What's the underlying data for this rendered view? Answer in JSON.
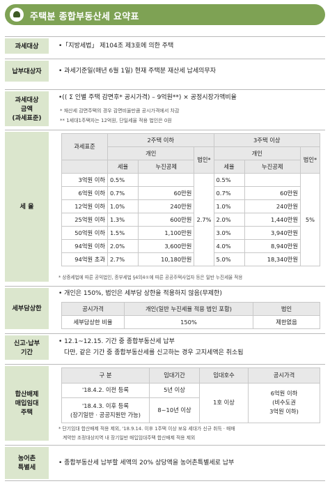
{
  "title": "주택분 종합부동산세 요약표",
  "rows": {
    "target": {
      "label": "과세대상",
      "text": "•「지방세법」 제104조 제3호에 의한 주택"
    },
    "payer": {
      "label": "납부대상자",
      "text": "• 과세기준일(매년 6월 1일) 현재 주택분 재산세 납세의무자"
    },
    "base": {
      "label1": "과세대상",
      "label2": "금액",
      "label3": "(과세표준)",
      "formula": "•(( Σ 인별 주택 감면후* 공시가격) – 9억원**) × 공정시장가액비율",
      "note1": "* 재산세 감면주택의 경우 감면비율만큼 공시가격에서 차감",
      "note2": "** 1세대1주택자는 12억원, 단일세율 적용 법인은 0원"
    },
    "rate": {
      "label": "세 율",
      "col_base": "과세표준",
      "col_two": "2주택 이하",
      "col_three": "3주택 이상",
      "col_indiv": "개인",
      "col_corp": "법인*",
      "col_rate": "세율",
      "col_ded": "누진공제",
      "rows": [
        [
          "3억원 이하",
          "0.5%",
          "",
          "0.5%",
          ""
        ],
        [
          "6억원 이하",
          "0.7%",
          "60만원",
          "0.7%",
          "60만원"
        ],
        [
          "12억원 이하",
          "1.0%",
          "240만원",
          "1.0%",
          "240만원"
        ],
        [
          "25억원 이하",
          "1.3%",
          "600만원",
          "2.0%",
          "1,440만원"
        ],
        [
          "50억원 이하",
          "1.5%",
          "1,100만원",
          "3.0%",
          "3,940만원"
        ],
        [
          "94억원 이하",
          "2.0%",
          "3,600만원",
          "4.0%",
          "8,940만원"
        ],
        [
          "94억원 초과",
          "2.7%",
          "10,180만원",
          "5.0%",
          "18,340만원"
        ]
      ],
      "corp_two": "2.7%",
      "corp_three": "5%",
      "note": "* 상증세법에 따른 공익법인, 종부세법 §4의4①에 따른 공공주택사업자 등은 일반 누진세율 적용"
    },
    "cap": {
      "label": "세부담상한",
      "text": "• 개인은 150%, 법인은 세부담 상한을 적용하지 않음(무제한)",
      "h1": "공시가격",
      "h2": "개인(일반 누진세율 적용 법인 포함)",
      "h3": "법인",
      "v1": "세부담상한 비율",
      "v2": "150%",
      "v3": "제한없음"
    },
    "period": {
      "label1": "신고·납부",
      "label2": "기간",
      "line1": "• 12.1~12.15. 기간 중 종합부동산세 납부",
      "line2": "다만, 같은 기간 중 종합부동산세를 신고하는 경우 고지세액은 취소됨"
    },
    "rental": {
      "label1": "합산배제",
      "label2": "매입임대",
      "label3": "주택",
      "h1": "구 분",
      "h2": "임대기간",
      "h3": "임대호수",
      "h4": "공시가격",
      "r1c1": "'18.4.2. 이전 등록",
      "r1c2": "5년 이상",
      "r2c1a": "'18.4.3. 이후 등록",
      "r2c1b": "(장기일반 · 공공지원만 가능)",
      "r2c2": "8~10년 이상",
      "c3": "1호 이상",
      "c4a": "6억원 이하",
      "c4b": "(비수도권",
      "c4c": "3억원 이하)",
      "note1": "* 단기임대 합산배제 적용 제외, '18.9.14. 이후 1주택 이상 보유 세대가 신규 취득 · 매매",
      "note2": "계약한 조정대상지역 내 장기일반 매입임대주택 합산배제 적용 제외"
    },
    "rural": {
      "label1": "농어촌",
      "label2": "특별세",
      "text": "• 종합부동산세 납부할 세액의 20% 상당액을 농어촌특별세로 납부"
    }
  }
}
